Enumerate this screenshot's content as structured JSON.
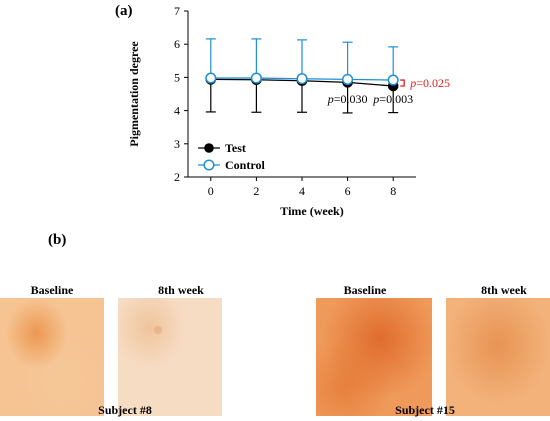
{
  "panel_a_label": "(a)",
  "panel_b_label": "(b)",
  "chart_data": {
    "type": "line",
    "xlabel": "Time (week)",
    "ylabel": "Pigmentation degree",
    "x": [
      0,
      2,
      4,
      6,
      8
    ],
    "xlim": [
      -1,
      9
    ],
    "ylim": [
      2,
      7
    ],
    "yticks": [
      2,
      3,
      4,
      5,
      6,
      7
    ],
    "series": [
      {
        "name": "Test",
        "values": [
          4.94,
          4.93,
          4.9,
          4.85,
          4.74
        ],
        "sd": [
          0.98,
          0.98,
          0.95,
          0.92,
          0.8
        ],
        "error_direction": "down",
        "marker": "filled-circle",
        "color": "#000000"
      },
      {
        "name": "Control",
        "values": [
          4.98,
          4.98,
          4.96,
          4.94,
          4.92
        ],
        "sd": [
          1.18,
          1.18,
          1.17,
          1.12,
          1.0
        ],
        "error_direction": "up",
        "marker": "open-circle",
        "color": "#1f8fd6"
      }
    ],
    "annotations": [
      {
        "text": "p=0.030",
        "x": 6,
        "y": 4.35
      },
      {
        "text": "p=0.003",
        "x": 8,
        "y": 4.35
      },
      {
        "text": "p=0.025",
        "x": 8,
        "y": 4.83,
        "color": "#e02020"
      }
    ],
    "legend_position": "bottom-left"
  },
  "photos": [
    {
      "title": "Baseline",
      "tone": "light-orange-spot"
    },
    {
      "title": "8th week",
      "tone": "light-pale"
    },
    {
      "title": "Baseline",
      "tone": "dense-orange"
    },
    {
      "title": "8th week",
      "tone": "medium-orange"
    }
  ],
  "subjects": [
    "Subject #8",
    "Subject #15"
  ]
}
